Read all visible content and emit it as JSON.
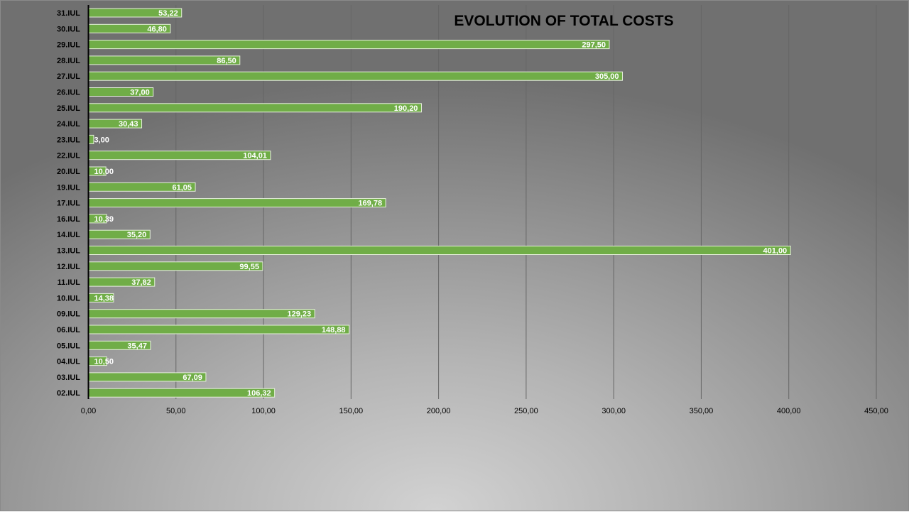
{
  "chart_data": {
    "type": "bar",
    "orientation": "horizontal",
    "title": "EVOLUTION OF TOTAL COSTS",
    "categories": [
      "02.IUL",
      "03.IUL",
      "04.IUL",
      "05.IUL",
      "06.IUL",
      "09.IUL",
      "10.IUL",
      "11.IUL",
      "12.IUL",
      "13.IUL",
      "14.IUL",
      "16.IUL",
      "17.IUL",
      "19.IUL",
      "20.IUL",
      "22.IUL",
      "23.IUL",
      "24.IUL",
      "25.IUL",
      "26.IUL",
      "27.IUL",
      "28.IUL",
      "29.IUL",
      "30.IUL",
      "31.IUL"
    ],
    "values": [
      106.32,
      67.09,
      10.5,
      35.47,
      148.88,
      129.23,
      14.38,
      37.82,
      99.55,
      401.0,
      35.2,
      10.39,
      169.78,
      61.05,
      10.0,
      104.01,
      3.0,
      30.43,
      190.2,
      37.0,
      305.0,
      86.5,
      297.5,
      46.8,
      53.22
    ],
    "value_labels": [
      "106,32",
      "67,09",
      "10,50",
      "35,47",
      "148,88",
      "129,23",
      "14,38",
      "37,82",
      "99,55",
      "401,00",
      "35,20",
      "10,39",
      "169,78",
      "61,05",
      "10,00",
      "104,01",
      "3,00",
      "30,43",
      "190,20",
      "37,00",
      "305,00",
      "86,50",
      "297,50",
      "46,80",
      "53,22"
    ],
    "xlim": [
      0,
      450
    ],
    "xticks": [
      0,
      50,
      100,
      150,
      200,
      250,
      300,
      350,
      400,
      450
    ],
    "xtick_labels": [
      "0,00",
      "50,00",
      "100,00",
      "150,00",
      "200,00",
      "250,00",
      "300,00",
      "350,00",
      "400,00",
      "450,00"
    ],
    "grid": "vertical",
    "legend": "none",
    "colors": {
      "bar": "#70ad47",
      "bar_border": "#e6f0dc",
      "gridline": "#666666",
      "axis": "#000000",
      "value_label": "#ffffff"
    }
  }
}
